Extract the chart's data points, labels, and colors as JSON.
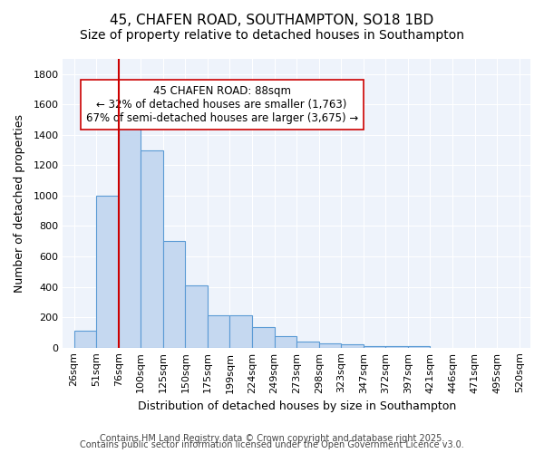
{
  "title": "45, CHAFEN ROAD, SOUTHAMPTON, SO18 1BD",
  "subtitle": "Size of property relative to detached houses in Southampton",
  "xlabel": "Distribution of detached houses by size in Southampton",
  "ylabel": "Number of detached properties",
  "bar_values": [
    110,
    1000,
    1500,
    1300,
    700,
    410,
    215,
    215,
    135,
    75,
    40,
    30,
    20,
    10,
    10,
    10
  ],
  "all_labels": [
    "26sqm",
    "51sqm",
    "76sqm",
    "100sqm",
    "125sqm",
    "150sqm",
    "175sqm",
    "199sqm",
    "224sqm",
    "249sqm",
    "273sqm",
    "298sqm",
    "323sqm",
    "347sqm",
    "372sqm",
    "397sqm",
    "421sqm",
    "446sqm",
    "471sqm",
    "495sqm",
    "520sqm"
  ],
  "bar_color": "#c5d8f0",
  "bar_edge_color": "#5b9bd5",
  "ref_line_color": "#cc0000",
  "annotation_title": "45 CHAFEN ROAD: 88sqm",
  "annotation_line1": "← 32% of detached houses are smaller (1,763)",
  "annotation_line2": "67% of semi-detached houses are larger (3,675) →",
  "annotation_box_color": "#ffffff",
  "annotation_box_edge": "#cc0000",
  "ylim": [
    0,
    1900
  ],
  "yticks": [
    0,
    200,
    400,
    600,
    800,
    1000,
    1200,
    1400,
    1600,
    1800
  ],
  "bg_color": "#eef3fb",
  "footer1": "Contains HM Land Registry data © Crown copyright and database right 2025.",
  "footer2": "Contains public sector information licensed under the Open Government Licence v3.0.",
  "title_fontsize": 11,
  "subtitle_fontsize": 10,
  "axis_label_fontsize": 9,
  "tick_fontsize": 8,
  "annotation_fontsize": 8.5,
  "footer_fontsize": 7
}
